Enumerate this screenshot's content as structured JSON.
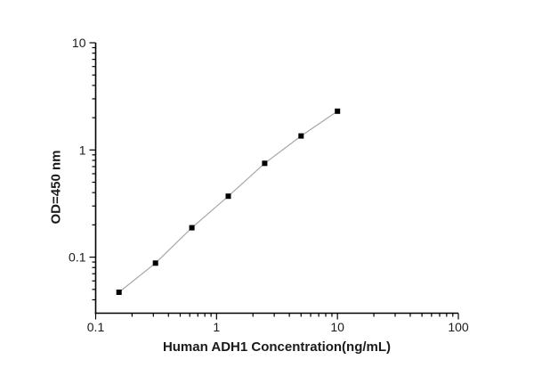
{
  "figure": {
    "background": "#ffffff",
    "axis_color": "#000000",
    "text_color": "#1a1a1a"
  },
  "chart_data": {
    "type": "line",
    "title": "",
    "xlabel": "Human ADH1 Concentration(ng/mL)",
    "ylabel": "OD=450 nm",
    "xscale": "log",
    "yscale": "log",
    "xlim": [
      0.1,
      100
    ],
    "ylim": [
      0.03,
      10
    ],
    "grid": false,
    "legend": false,
    "x_ticks": {
      "values": [
        0.1,
        1,
        10,
        100
      ],
      "labels": [
        "0.1",
        "1",
        "10",
        "100"
      ]
    },
    "y_ticks": {
      "values": [
        0.1,
        1,
        10
      ],
      "labels": [
        "0.1",
        "1",
        "10"
      ]
    },
    "series": [
      {
        "x": [
          0.156,
          0.3125,
          0.625,
          1.25,
          2.5,
          5,
          10
        ],
        "y": [
          0.047,
          0.088,
          0.188,
          0.37,
          0.75,
          1.35,
          2.3
        ],
        "marker": "filled-square",
        "marker_size": 6,
        "marker_color": "#000000",
        "line_color": "#a6a6a6"
      }
    ]
  }
}
